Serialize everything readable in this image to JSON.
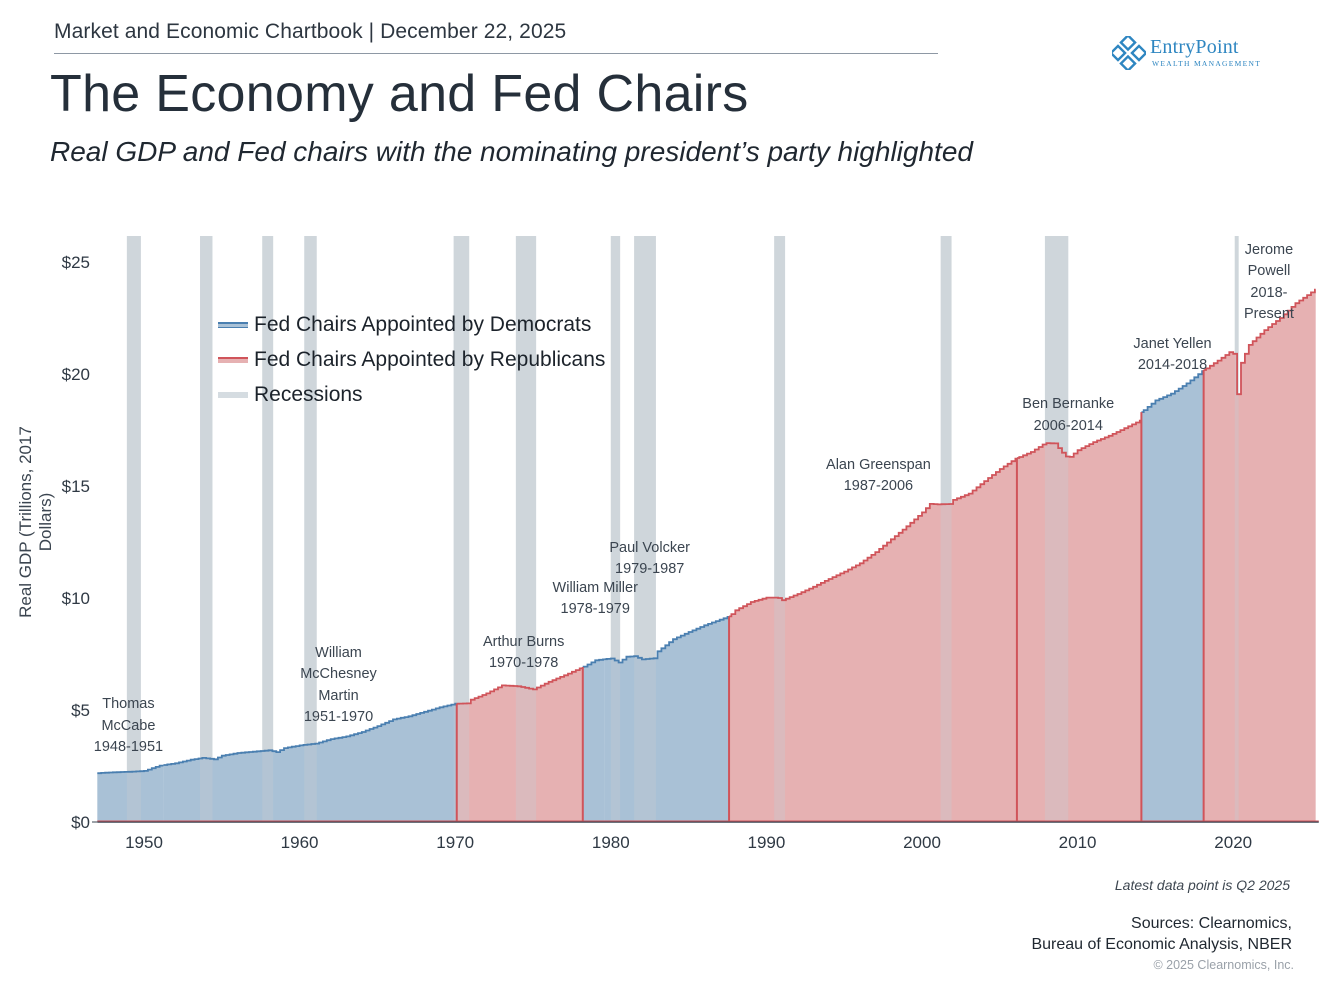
{
  "header": {
    "chartbook": "Market and Economic Chartbook | December 22, 2025",
    "title": "The Economy and Fed Chairs",
    "subtitle": "Real GDP and Fed chairs with the nominating president’s party highlighted"
  },
  "logo": {
    "name": "EntryPoint",
    "tagline": "WEALTH MANAGEMENT",
    "color": "#2e86c1"
  },
  "footer": {
    "note": "Latest data point is Q2 2025",
    "sources_line1": "Sources: Clearnomics,",
    "sources_line2": "Bureau of Economic Analysis, NBER",
    "copyright": "© 2025 Clearnomics, Inc."
  },
  "chart_data": {
    "type": "area",
    "title": "The Economy and Fed Chairs",
    "xlabel": "",
    "ylabel": "Real GDP (Trillions, 2017 Dollars)",
    "xlim": [
      1947,
      2025.5
    ],
    "ylim": [
      0,
      26
    ],
    "x_ticks": [
      1950,
      1960,
      1970,
      1980,
      1990,
      2000,
      2010,
      2020
    ],
    "y_ticks": [
      0,
      5,
      10,
      15,
      20,
      25
    ],
    "y_tick_labels": [
      "$0",
      "$5",
      "$10",
      "$15",
      "$20",
      "$25"
    ],
    "grid": false,
    "legend_position": "top-left",
    "colors": {
      "democrat_line": "#4a7fb0",
      "democrat_fill": "#a9c1d6",
      "republican_line": "#d0545a",
      "republican_fill": "#e6b1b2",
      "recession": "#d5dce1",
      "axis": "#3a4552"
    },
    "legend": [
      {
        "label": "Fed Chairs Appointed by Democrats",
        "key": "democrat"
      },
      {
        "label": "Fed Chairs Appointed by Republicans",
        "key": "republican"
      },
      {
        "label": "Recessions",
        "key": "recession"
      }
    ],
    "gdp_series": {
      "name": "Real GDP",
      "x": [
        1947,
        1948,
        1949,
        1950,
        1951,
        1952,
        1953,
        1953.75,
        1954.5,
        1955,
        1956,
        1957,
        1958,
        1958.5,
        1959,
        1960,
        1961,
        1962,
        1963,
        1964,
        1965,
        1966,
        1967,
        1968,
        1969,
        1970,
        1970.9,
        1971,
        1972,
        1973,
        1974,
        1975,
        1976,
        1977,
        1978.2,
        1979,
        1980,
        1980.5,
        1981,
        1981.5,
        1982,
        1982.9,
        1983,
        1984,
        1985,
        1986,
        1987.6,
        1988,
        1989,
        1990,
        1990.7,
        1991,
        1992,
        1993,
        1994,
        1995,
        1996,
        1997,
        1998,
        1999,
        2000,
        2000.5,
        2001,
        2001.9,
        2002,
        2003,
        2004,
        2005,
        2006,
        2007,
        2007.9,
        2008.5,
        2009.2,
        2009.5,
        2010,
        2011,
        2012,
        2013,
        2014,
        2014.1,
        2015,
        2016,
        2017,
        2018.1,
        2019,
        2019.8,
        2020.0,
        2020.25,
        2020.5,
        2021,
        2022,
        2023,
        2024,
        2025.3
      ],
      "values": [
        2.18,
        2.22,
        2.24,
        2.28,
        2.52,
        2.62,
        2.78,
        2.86,
        2.8,
        2.96,
        3.08,
        3.14,
        3.2,
        3.12,
        3.3,
        3.42,
        3.5,
        3.7,
        3.82,
        4.02,
        4.28,
        4.58,
        4.72,
        4.92,
        5.12,
        5.28,
        5.3,
        5.46,
        5.74,
        6.1,
        6.06,
        5.92,
        6.26,
        6.55,
        6.92,
        7.22,
        7.3,
        7.12,
        7.38,
        7.4,
        7.26,
        7.32,
        7.62,
        8.16,
        8.48,
        8.78,
        9.18,
        9.45,
        9.82,
        10.02,
        10.02,
        9.9,
        10.18,
        10.5,
        10.85,
        11.18,
        11.55,
        12.05,
        12.62,
        13.2,
        13.82,
        14.2,
        14.18,
        14.2,
        14.38,
        14.66,
        15.22,
        15.76,
        16.22,
        16.52,
        16.92,
        16.9,
        16.32,
        16.3,
        16.6,
        16.96,
        17.24,
        17.58,
        17.92,
        18.3,
        18.82,
        19.12,
        19.58,
        20.18,
        20.6,
        21.0,
        20.9,
        19.1,
        20.5,
        21.3,
        21.96,
        22.5,
        23.16,
        23.79
      ]
    },
    "fed_chairs": [
      {
        "name": "Thomas McCabe",
        "term": "1948-1951",
        "start": 1947,
        "end": 1951.25,
        "party": "democrat"
      },
      {
        "name": "William McChesney Martin",
        "term": "1951-1970",
        "start": 1951.25,
        "end": 1970.1,
        "party": "democrat"
      },
      {
        "name": "Arthur Burns",
        "term": "1970-1978",
        "start": 1970.1,
        "end": 1978.2,
        "party": "republican"
      },
      {
        "name": "William Miller",
        "term": "1978-1979",
        "start": 1978.2,
        "end": 1979.6,
        "party": "democrat"
      },
      {
        "name": "Paul Volcker",
        "term": "1979-1987",
        "start": 1979.6,
        "end": 1987.6,
        "party": "democrat"
      },
      {
        "name": "Alan Greenspan",
        "term": "1987-2006",
        "start": 1987.6,
        "end": 2006.1,
        "party": "republican"
      },
      {
        "name": "Ben Bernanke",
        "term": "2006-2014",
        "start": 2006.1,
        "end": 2014.1,
        "party": "republican"
      },
      {
        "name": "Janet Yellen",
        "term": "2014-2018",
        "start": 2014.1,
        "end": 2018.1,
        "party": "democrat"
      },
      {
        "name": "Jerome Powell",
        "term": "2018-Present",
        "start": 2018.1,
        "end": 2025.3,
        "party": "republican"
      }
    ],
    "annotations": [
      {
        "text": "Thomas\nMcCabe\n1948-1951",
        "x": 1949.0,
        "y": 5.7
      },
      {
        "text": "William\nMcChesney\nMartin\n1951-1970",
        "x": 1962.5,
        "y": 8.0
      },
      {
        "text": "Arthur Burns\n1970-1978",
        "x": 1974.4,
        "y": 8.5
      },
      {
        "text": "William Miller\n1978-1979",
        "x": 1979.0,
        "y": 10.9
      },
      {
        "text": "Paul Volcker\n1979-1987",
        "x": 1982.5,
        "y": 12.7
      },
      {
        "text": "Alan Greenspan\n1987-2006",
        "x": 1997.2,
        "y": 16.4
      },
      {
        "text": "Ben Bernanke\n2006-2014",
        "x": 2009.4,
        "y": 19.1
      },
      {
        "text": "Janet Yellen\n2014-2018",
        "x": 2016.1,
        "y": 21.8
      },
      {
        "text": "Jerome Powell\n2018-Present",
        "x": 2022.3,
        "y": 26.0
      }
    ],
    "recessions": [
      [
        1948.9,
        1949.8
      ],
      [
        1953.6,
        1954.4
      ],
      [
        1957.6,
        1958.3
      ],
      [
        1960.3,
        1961.1
      ],
      [
        1969.9,
        1970.9
      ],
      [
        1973.9,
        1975.2
      ],
      [
        1980.0,
        1980.6
      ],
      [
        1981.5,
        1982.9
      ],
      [
        1990.5,
        1991.2
      ],
      [
        2001.2,
        2001.9
      ],
      [
        2007.9,
        2009.4
      ],
      [
        2020.1,
        2020.35
      ]
    ]
  }
}
